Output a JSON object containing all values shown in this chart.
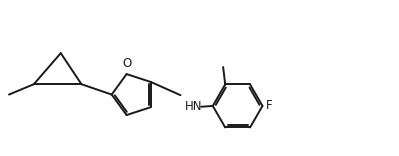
{
  "bg_color": "#ffffff",
  "line_color": "#1a1a1a",
  "line_width": 1.4,
  "font_size": 8.5,
  "F_label": "F",
  "O_label": "O",
  "HN_label": "HN",
  "fig_width": 3.99,
  "fig_height": 1.56,
  "dpi": 100
}
